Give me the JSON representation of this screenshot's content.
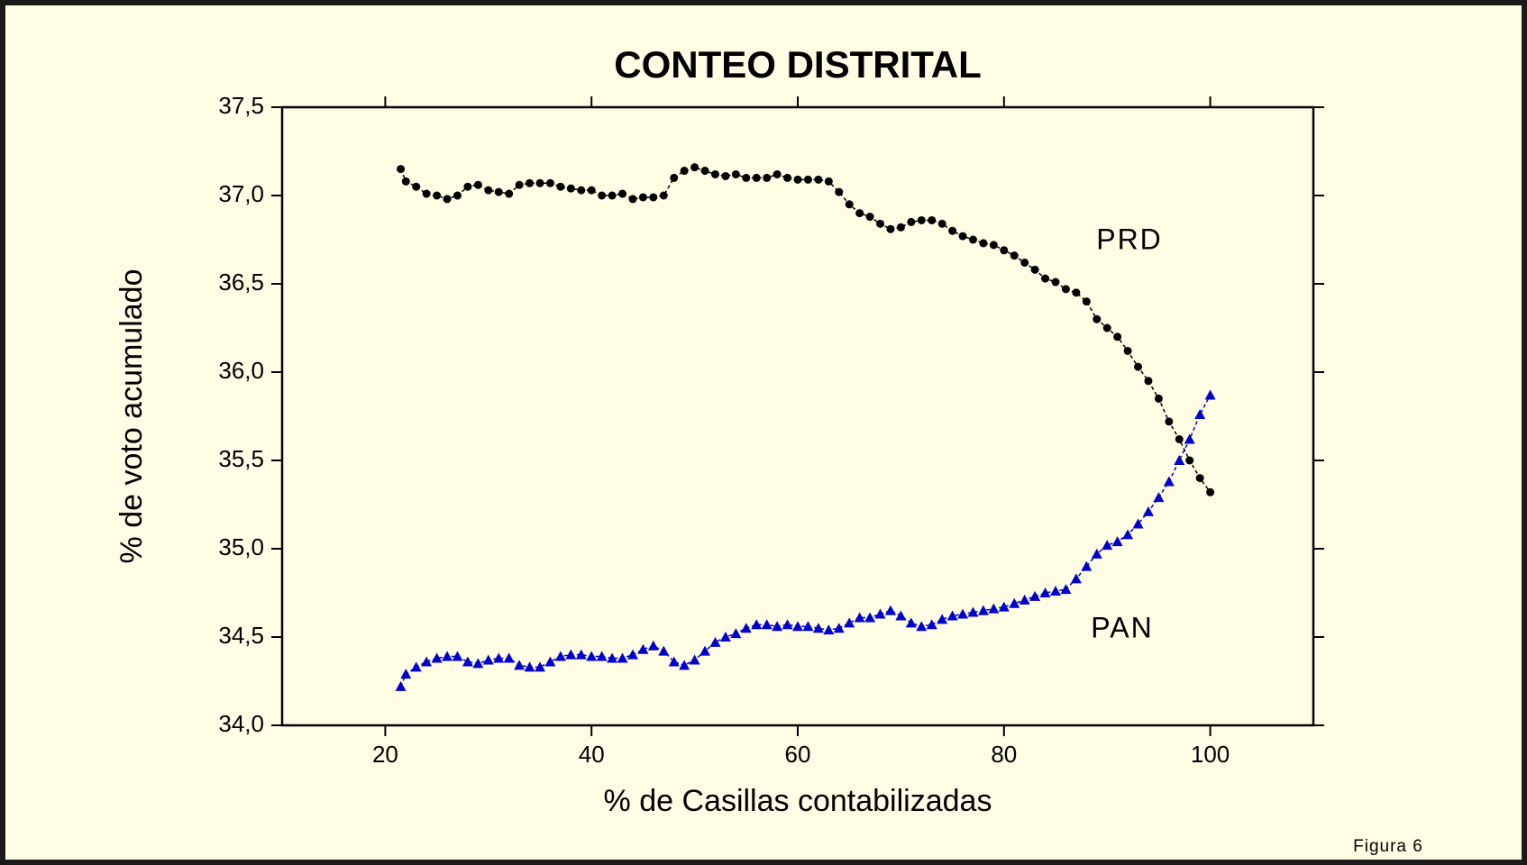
{
  "chart_data": {
    "type": "line",
    "title": "CONTEO DISTRITAL",
    "x_label": "% de Casillas contabilizadas",
    "y_label": "% de voto acumulado",
    "note": "Figura 6",
    "x": [
      21.5,
      22,
      23,
      24,
      25,
      26,
      27,
      28,
      29,
      30,
      31,
      32,
      33,
      34,
      35,
      36,
      37,
      38,
      39,
      40,
      41,
      42,
      43,
      44,
      45,
      46,
      47,
      48,
      49,
      50,
      51,
      52,
      53,
      54,
      55,
      56,
      57,
      58,
      59,
      60,
      61,
      62,
      63,
      64,
      65,
      66,
      67,
      68,
      69,
      70,
      71,
      72,
      73,
      74,
      75,
      76,
      77,
      78,
      79,
      80,
      81,
      82,
      83,
      84,
      85,
      86,
      87,
      88,
      89,
      90,
      91,
      92,
      93,
      94,
      95,
      96,
      97,
      98,
      99,
      100
    ],
    "series": [
      {
        "name": "PRD",
        "color": "#000000",
        "marker": "circle",
        "values": [
          37.15,
          37.08,
          37.05,
          37.01,
          37.0,
          36.98,
          37.0,
          37.05,
          37.06,
          37.03,
          37.02,
          37.01,
          37.06,
          37.07,
          37.07,
          37.07,
          37.05,
          37.04,
          37.03,
          37.03,
          37.0,
          37.0,
          37.01,
          36.98,
          36.99,
          36.99,
          37.0,
          37.1,
          37.14,
          37.16,
          37.14,
          37.12,
          37.11,
          37.12,
          37.1,
          37.1,
          37.1,
          37.12,
          37.1,
          37.09,
          37.09,
          37.09,
          37.08,
          37.02,
          36.95,
          36.9,
          36.88,
          36.84,
          36.81,
          36.82,
          36.85,
          36.86,
          36.86,
          36.84,
          36.8,
          36.77,
          36.75,
          36.73,
          36.72,
          36.69,
          36.66,
          36.62,
          36.58,
          36.53,
          36.51,
          36.47,
          36.45,
          36.4,
          36.3,
          36.25,
          36.2,
          36.12,
          36.03,
          35.95,
          35.85,
          35.72,
          35.62,
          35.5,
          35.4,
          35.32
        ]
      },
      {
        "name": "PAN",
        "color": "#0000cc",
        "marker": "triangle",
        "values": [
          34.22,
          34.29,
          34.33,
          34.36,
          34.38,
          34.39,
          34.39,
          34.36,
          34.35,
          34.37,
          34.38,
          34.38,
          34.34,
          34.33,
          34.33,
          34.36,
          34.39,
          34.4,
          34.4,
          34.39,
          34.39,
          34.38,
          34.38,
          34.4,
          34.43,
          34.45,
          34.42,
          34.36,
          34.34,
          34.37,
          34.42,
          34.47,
          34.5,
          34.52,
          34.55,
          34.57,
          34.57,
          34.56,
          34.57,
          34.56,
          34.56,
          34.55,
          34.54,
          34.55,
          34.58,
          34.61,
          34.61,
          34.63,
          34.65,
          34.62,
          34.58,
          34.56,
          34.57,
          34.6,
          34.62,
          34.63,
          34.64,
          34.65,
          34.66,
          34.67,
          34.69,
          34.71,
          34.73,
          34.75,
          34.76,
          34.77,
          34.83,
          34.9,
          34.97,
          35.02,
          35.04,
          35.08,
          35.14,
          35.21,
          35.29,
          35.38,
          35.5,
          35.62,
          35.76,
          35.87
        ]
      }
    ],
    "xlim": [
      10,
      110
    ],
    "xticks": [
      20,
      40,
      60,
      80,
      100
    ],
    "ylim": [
      34,
      37.5
    ],
    "yticks": [
      {
        "value": 34,
        "label": "34,0"
      },
      {
        "value": 34.5,
        "label": "34,5"
      },
      {
        "value": 35,
        "label": "35,0"
      },
      {
        "value": 35.5,
        "label": "35,5"
      },
      {
        "value": 36,
        "label": "36,0"
      },
      {
        "value": 36.5,
        "label": "36,5"
      },
      {
        "value": 37,
        "label": "37,0"
      },
      {
        "value": 37.5,
        "label": "37,5"
      }
    ],
    "grid": false
  }
}
